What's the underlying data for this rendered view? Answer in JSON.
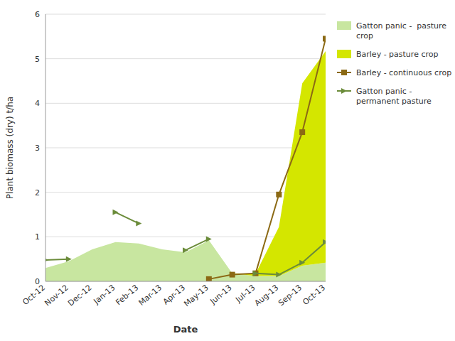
{
  "chart_data": {
    "type": "area",
    "x_label": "Date",
    "y_label": "Plant biomass (dry) t/ha",
    "categories": [
      "Oct-12",
      "Nov-12",
      "Dec-12",
      "Jan-13",
      "Feb-13",
      "Mar-13",
      "Apr-13",
      "May-13",
      "Jun-13",
      "Jul-13",
      "Aug-13",
      "Sep-13",
      "Oct-13"
    ],
    "stacked": true,
    "series": [
      {
        "name": "Gatton panic -  pasture\ncrop",
        "type": "area",
        "color": "#c8e6a0",
        "values": [
          0.3,
          0.45,
          0.72,
          0.88,
          0.85,
          0.72,
          0.65,
          0.92,
          0.18,
          0.12,
          0.12,
          0.35,
          0.42
        ]
      },
      {
        "name": "Barley - pasture crop",
        "type": "area",
        "color": "#d4e600",
        "values": [
          0.0,
          0.0,
          0.0,
          0.0,
          0.0,
          0.0,
          0.0,
          0.0,
          0.0,
          0.05,
          1.1,
          4.1,
          4.75
        ]
      },
      {
        "name": "Barley - continuous crop",
        "type": "line",
        "color": "#8B6914",
        "marker": "square",
        "values": [
          null,
          null,
          null,
          null,
          null,
          null,
          null,
          0.05,
          0.15,
          0.18,
          1.95,
          3.35,
          5.45
        ]
      },
      {
        "name": "Gatton panic -\npermanent pasture",
        "type": "line",
        "color": "#6b8c3a",
        "marker": "triangle-right",
        "values": [
          0.48,
          0.5,
          null,
          1.55,
          1.3,
          null,
          0.7,
          0.95,
          null,
          0.18,
          0.15,
          0.42,
          0.88
        ]
      }
    ],
    "ylim": [
      0,
      6
    ],
    "yticks": [
      0,
      1,
      2,
      3,
      4,
      5,
      6
    ],
    "grid": true,
    "legend": "right"
  }
}
